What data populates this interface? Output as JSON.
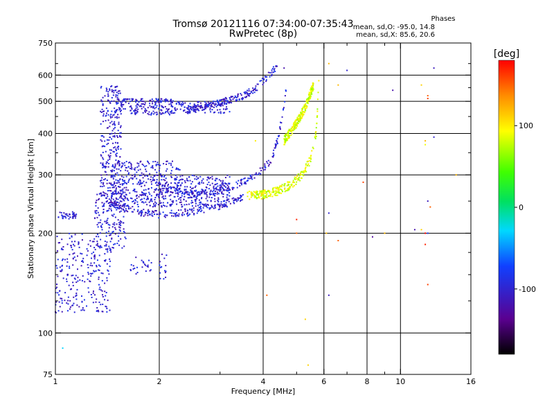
{
  "header": {
    "title_line1": "Tromsø 20121116 07:34:00-07:35:43",
    "title_line2": "RwPretec (8p)",
    "stats_title": "Phases",
    "stats_line1": "mean, sd,O: -95.0, 14.8",
    "stats_line2": "mean, sd,X:  85.6, 20.6"
  },
  "chart_data": {
    "type": "scatter",
    "title": "Tromsø 20121116 07:34:00-07:35:43",
    "subtitle": "RwPretec (8p)",
    "xlabel": "Frequency [MHz]",
    "ylabel": "Stationary phase Virtual Height [km]",
    "x_scale": "log",
    "y_scale": "log",
    "xlim": [
      1,
      16
    ],
    "ylim": [
      75,
      750
    ],
    "x_ticks": [
      1,
      2,
      4,
      6,
      8,
      10,
      16
    ],
    "x_tick_labels": [
      "1",
      "2",
      "4",
      "6",
      "8",
      "10",
      "16"
    ],
    "x_major_grid": [
      2,
      4,
      6,
      8,
      10
    ],
    "x_minor_ticks": [
      3,
      5,
      7,
      9
    ],
    "y_ticks": [
      75,
      100,
      200,
      300,
      400,
      500,
      600,
      750
    ],
    "y_tick_labels": [
      "75",
      "100",
      "200",
      "300",
      "400",
      "500",
      "600",
      "750"
    ],
    "y_major_grid": [
      100,
      200,
      300,
      400,
      500,
      600
    ],
    "y_minor_ticks": [
      125,
      150,
      175,
      250,
      350,
      450,
      550,
      650
    ],
    "grid": true,
    "colorbar": {
      "label": "[deg]",
      "range": [
        -180,
        180
      ],
      "ticks": [
        100,
        0,
        -100
      ],
      "tick_labels": [
        "100",
        "0",
        "-100"
      ]
    },
    "series": [
      {
        "description": "O-mode traces (phase ≈ -95 deg)",
        "segments": [
          {
            "x_range": [
              1.02,
              1.15
            ],
            "y_range": [
              220,
              232
            ],
            "n": 40
          },
          {
            "x_range": [
              1.0,
              1.45
            ],
            "y_range": [
              115,
              200
            ],
            "n": 260
          },
          {
            "x_range": [
              1.3,
              1.6
            ],
            "y_range": [
              180,
              270
            ],
            "n": 160
          },
          {
            "x_range": [
              1.35,
              1.55
            ],
            "y_range": [
              260,
              560
            ],
            "n": 260
          },
          {
            "x_range": [
              1.5,
              2.2
            ],
            "y_range": [
              455,
              510
            ],
            "n": 200
          },
          {
            "x_range": [
              1.45,
              2.3
            ],
            "y_range": [
              240,
              330
            ],
            "n": 420
          },
          {
            "x_range": [
              2.3,
              3.2
            ],
            "y_range": [
              240,
              300
            ],
            "n": 220
          },
          {
            "x_range": [
              2.2,
              3.2
            ],
            "y_range": [
              460,
              500
            ],
            "n": 90
          },
          {
            "x_range": [
              1.65,
              1.95
            ],
            "y_range": [
              150,
              170
            ],
            "n": 25
          },
          {
            "x_range": [
              2.0,
              2.1
            ],
            "y_range": [
              145,
              175
            ],
            "n": 15
          }
        ],
        "curves": [
          {
            "name": "lower-boundary",
            "x": [
              1.4,
              1.7,
              2.0,
              2.5,
              3.0,
              3.5
            ],
            "y": [
              250,
              232,
              228,
              232,
              242,
              258
            ]
          },
          {
            "name": "upper-o-trace",
            "x": [
              2.0,
              2.5,
              3.0,
              3.5,
              3.9,
              4.2,
              4.4,
              4.6,
              4.7
            ],
            "y": [
              275,
              262,
              270,
              285,
              305,
              330,
              380,
              480,
              600
            ]
          },
          {
            "name": "upper-f2-trace",
            "x": [
              2.4,
              3.0,
              3.5,
              3.8,
              4.1,
              4.4
            ],
            "y": [
              470,
              495,
              520,
              545,
              590,
              640
            ]
          }
        ]
      },
      {
        "description": "X-mode traces (phase ≈ 86 deg)",
        "curves": [
          {
            "name": "x-trace",
            "x": [
              3.6,
              4.0,
              4.4,
              4.8,
              5.2,
              5.5,
              5.7,
              5.8
            ],
            "y": [
              260,
              262,
              268,
              280,
              300,
              335,
              400,
              570
            ]
          },
          {
            "name": "x-trace-upper",
            "x": [
              4.6,
              5.0,
              5.3,
              5.6
            ],
            "y": [
              380,
              430,
              480,
              560
            ]
          }
        ]
      },
      {
        "description": "Scattered noise points (various phase)",
        "points": [
          [
            1.05,
            90,
            -30
          ],
          [
            4.1,
            130,
            150
          ],
          [
            6.2,
            650,
            120
          ],
          [
            7.0,
            620,
            -100
          ],
          [
            9.5,
            540,
            -120
          ],
          [
            12.5,
            630,
            -110
          ],
          [
            11.5,
            560,
            110
          ],
          [
            12.0,
            520,
            150
          ],
          [
            12.0,
            510,
            160
          ],
          [
            11.8,
            380,
            120
          ],
          [
            11.8,
            370,
            90
          ],
          [
            12.0,
            250,
            -110
          ],
          [
            12.2,
            240,
            150
          ],
          [
            12.5,
            390,
            -100
          ],
          [
            11.8,
            200,
            180
          ],
          [
            12.0,
            200,
            -80
          ],
          [
            11.8,
            185,
            170
          ],
          [
            14.5,
            300,
            120
          ],
          [
            12.0,
            140,
            160
          ],
          [
            6.2,
            130,
            -110
          ],
          [
            6.2,
            230,
            -100
          ],
          [
            6.1,
            200,
            120
          ],
          [
            6.6,
            190,
            150
          ],
          [
            7.8,
            285,
            160
          ],
          [
            9.0,
            200,
            120
          ],
          [
            11.0,
            205,
            -120
          ],
          [
            11.5,
            205,
            110
          ],
          [
            5.0,
            200,
            150
          ],
          [
            5.0,
            220,
            170
          ],
          [
            5.3,
            110,
            110
          ],
          [
            5.4,
            80,
            110
          ],
          [
            6.6,
            560,
            120
          ],
          [
            8.3,
            195,
            -130
          ],
          [
            4.6,
            630,
            -120
          ],
          [
            3.8,
            380,
            100
          ]
        ]
      }
    ]
  }
}
